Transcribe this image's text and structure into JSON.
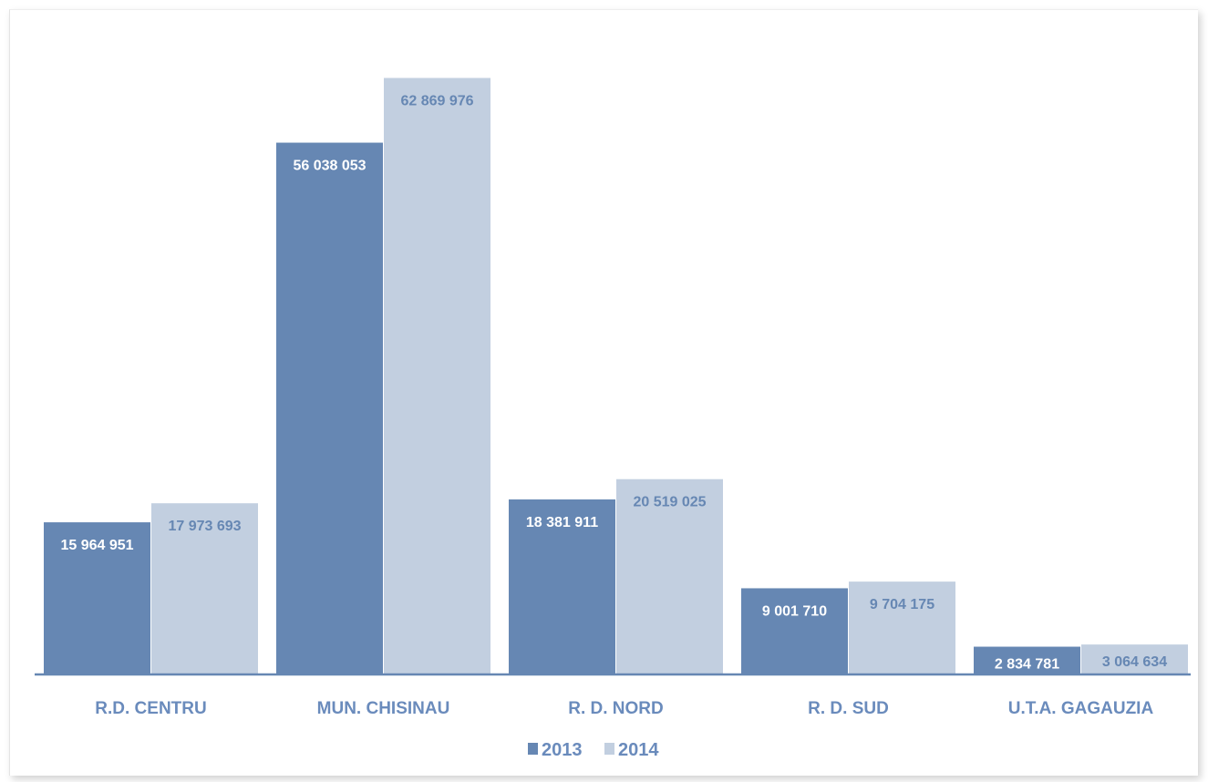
{
  "chart_data": {
    "type": "bar",
    "categories": [
      "R.D. CENTRU",
      "MUN. CHISINAU",
      "R. D. NORD",
      "R. D. SUD",
      "U.T.A. GAGAUZIA"
    ],
    "series": [
      {
        "name": "2013",
        "values": [
          15964951,
          56038053,
          18381911,
          9001710,
          2834781
        ],
        "labels": [
          "15 964 951",
          "56 038 053",
          "18 381 911",
          "9 001 710",
          "2 834 781"
        ],
        "color": "#6687b3"
      },
      {
        "name": "2014",
        "values": [
          17973693,
          62869976,
          20519025,
          9704175,
          3064634
        ],
        "labels": [
          "17 973 693",
          "62 869 976",
          "20 519 025",
          "9 704 175",
          "3 064 634"
        ],
        "color": "#c2cfe0"
      }
    ],
    "ylim": [
      0,
      66000000
    ],
    "grid": false,
    "legend_position": "bottom",
    "colors": {
      "axis": "#6687b3",
      "category_text": "#6a8bbc",
      "label_on_dark": "#ffffff",
      "label_on_light": "#6687b3"
    }
  }
}
